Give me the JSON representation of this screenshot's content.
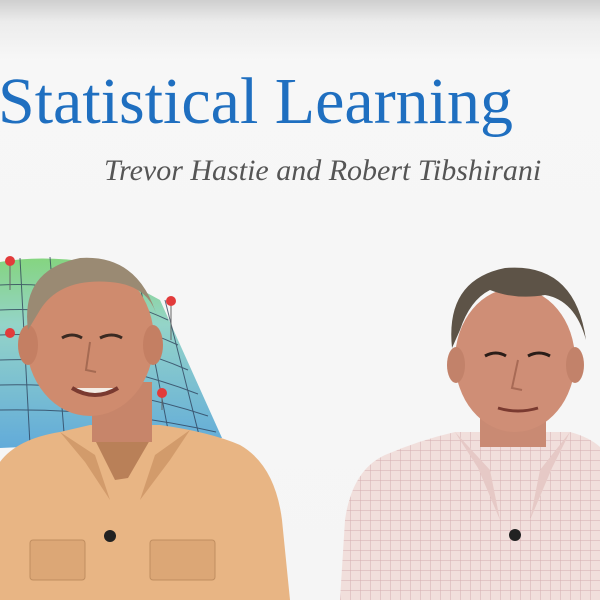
{
  "header": {
    "title": "Statistical Learning",
    "subtitle": "Trevor Hastie and Robert Tibshirani"
  },
  "colors": {
    "title_blue": "#1f6fc0",
    "subtitle_gray": "#555555",
    "background": "#f5f5f5",
    "left_shirt": "#e9b788",
    "right_shirt": "#efdad8"
  }
}
